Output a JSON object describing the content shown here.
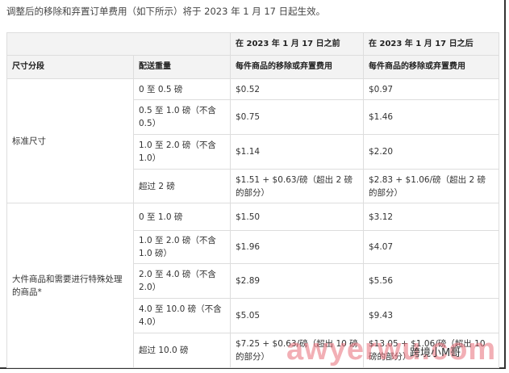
{
  "intro": "调整后的移除和弃置订单费用（如下所示）将于 2023 年 1 月 17 日起生效。",
  "header": {
    "before": "在 2023 年 1 月 17 日之前",
    "after": "在 2023 年 1 月 17 日之后",
    "size_tier": "尺寸分段",
    "weight": "配送重量",
    "fee_before": "每件商品的移除或弃置费用",
    "fee_after": "每件商品的移除或弃置费用"
  },
  "groups": [
    {
      "tier": "标准尺寸",
      "rows": [
        {
          "weight": "0 至 0.5 磅",
          "before": "$0.52",
          "after": "$0.97"
        },
        {
          "weight": "0.5 至 1.0 磅（不含 0.5）",
          "before": "$0.75",
          "after": "$1.46"
        },
        {
          "weight": "1.0 至 2.0 磅（不含 1.0）",
          "before": "$1.14",
          "after": "$2.20"
        },
        {
          "weight": "超过 2 磅",
          "before": "$1.51 + $0.63/磅（超出 2 磅的部分）",
          "after": "$2.83 + $1.06/磅（超出 2 磅的部分）"
        }
      ]
    },
    {
      "tier": "大件商品和需要进行特殊处理的商品*",
      "rows": [
        {
          "weight": "0 至 1.0 磅",
          "before": "$1.50",
          "after": "$3.12"
        },
        {
          "weight": "1.0 至 2.0 磅（不含 1.0 磅）",
          "before": "$1.96",
          "after": "$4.07"
        },
        {
          "weight": "2.0 至 4.0 磅（不含 2.0）",
          "before": "$2.89",
          "after": "$5.56"
        },
        {
          "weight": "4.0 至 10.0 磅（不含 4.0）",
          "before": "$5.05",
          "after": "$9.43"
        },
        {
          "weight": "超过 10.0 磅",
          "before": "$7.25 + $0.63/磅（超出 10 磅的部分）",
          "after": "$13.05 + $1.06/磅（超出 10 磅的部分）"
        }
      ]
    }
  ],
  "watermark": {
    "site": "awyerwu.com",
    "account": "跨境小M哥"
  }
}
